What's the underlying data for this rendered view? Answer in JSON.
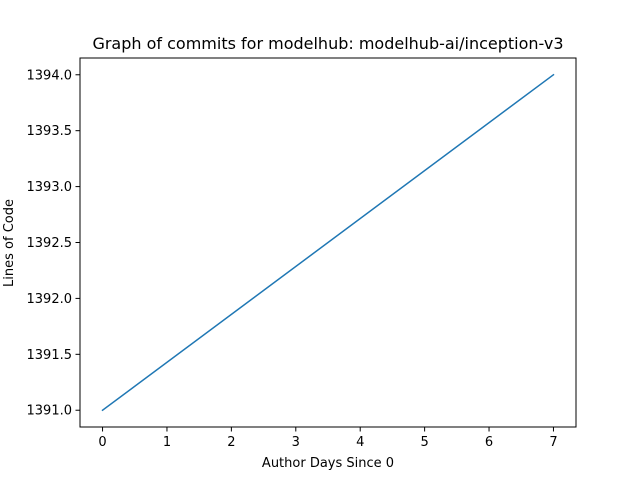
{
  "chart_data": {
    "type": "line",
    "title": "Graph of commits for modelhub: modelhub-ai/inception-v3",
    "xlabel": "Author Days Since 0",
    "ylabel": "Lines of Code",
    "x": [
      0,
      7
    ],
    "series": [
      {
        "values": [
          1391.0,
          1394.0
        ],
        "color": "#1f77b4"
      }
    ],
    "xlim": [
      -0.35,
      7.35
    ],
    "ylim": [
      1390.85,
      1394.15
    ],
    "xticks": [
      0,
      1,
      2,
      3,
      4,
      5,
      6,
      7
    ],
    "xtick_labels": [
      "0",
      "1",
      "2",
      "3",
      "4",
      "5",
      "6",
      "7"
    ],
    "yticks": [
      1391.0,
      1391.5,
      1392.0,
      1392.5,
      1393.0,
      1393.5,
      1394.0
    ],
    "ytick_labels": [
      "1391.0",
      "1391.5",
      "1392.0",
      "1392.5",
      "1393.0",
      "1393.5",
      "1394.0"
    ],
    "grid": false,
    "legend": false
  }
}
